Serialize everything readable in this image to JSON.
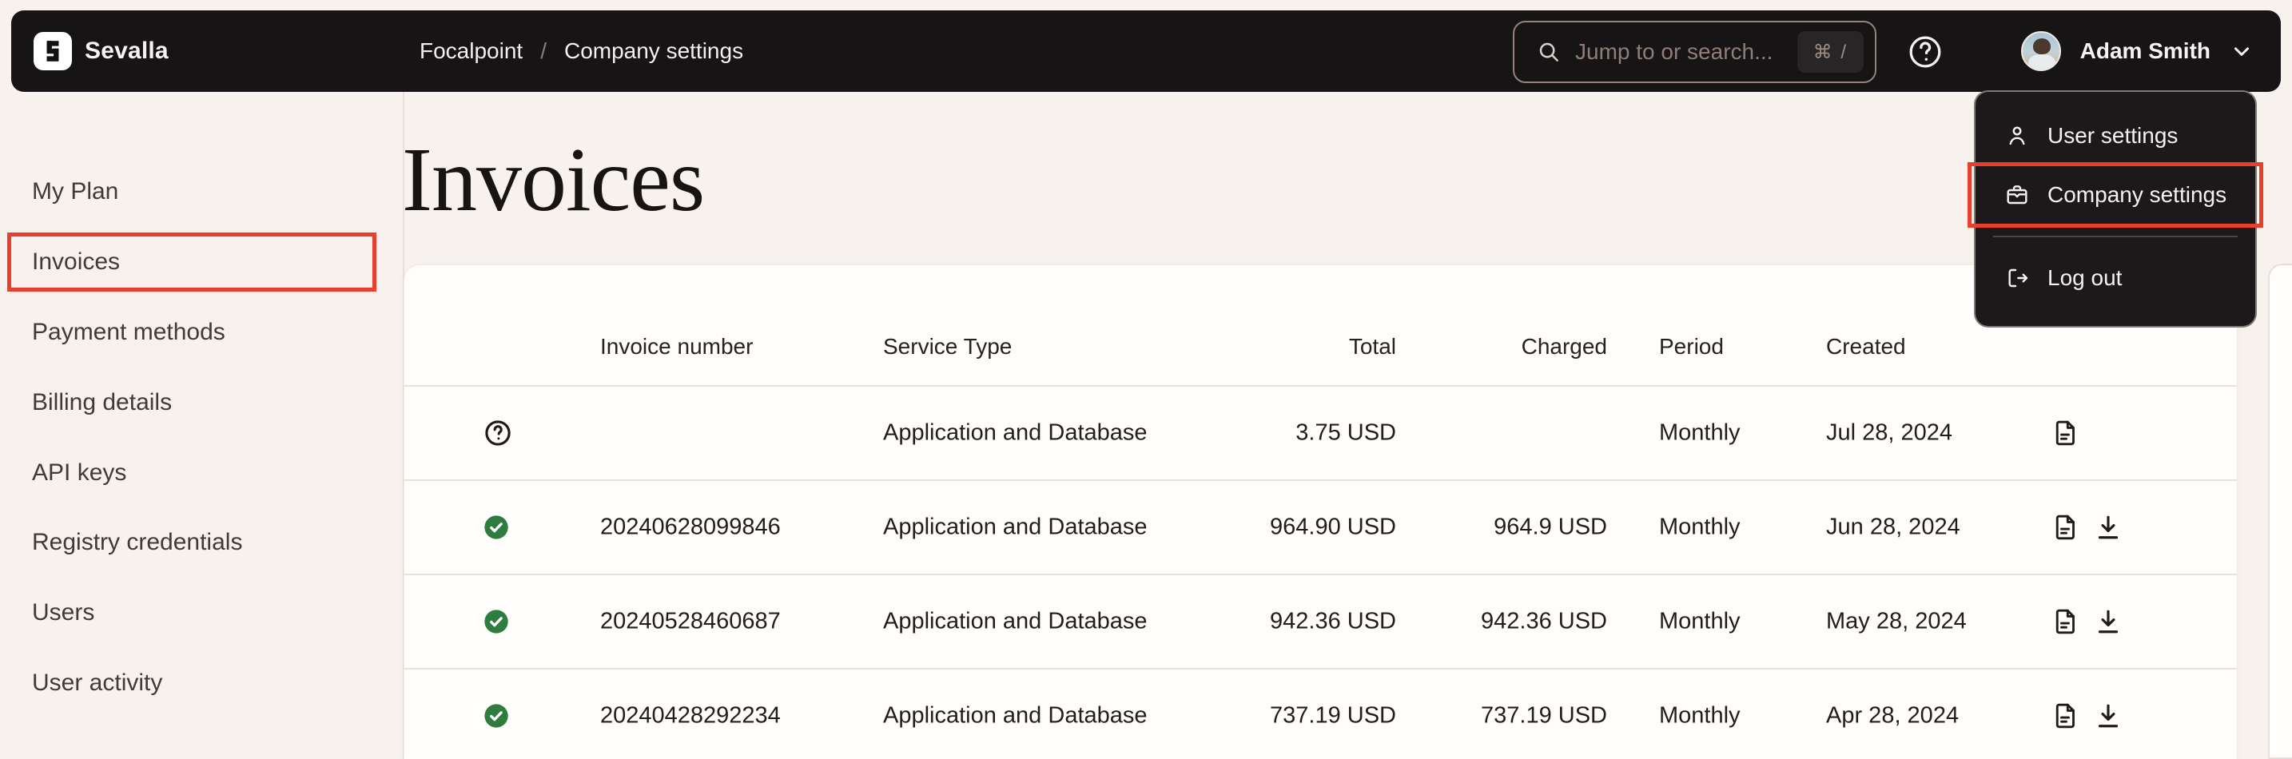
{
  "brand": {
    "name": "Sevalla"
  },
  "navbar": {
    "breadcrumb": {
      "items": [
        "Focalpoint",
        "Company settings"
      ],
      "separator": "/"
    },
    "search": {
      "placeholder": "Jump to or search...",
      "shortcut": "⌘ /"
    },
    "user": {
      "name": "Adam Smith"
    }
  },
  "user_menu": {
    "items": [
      {
        "label": "User settings",
        "icon": "user-icon",
        "highlighted": false
      },
      {
        "label": "Company settings",
        "icon": "briefcase-icon",
        "highlighted": true
      },
      {
        "label": "Log out",
        "icon": "logout-icon",
        "highlighted": false
      }
    ]
  },
  "sidebar": {
    "items": [
      {
        "label": "My Plan",
        "selected": false
      },
      {
        "label": "Invoices",
        "selected": true,
        "annotated": true
      },
      {
        "label": "Payment methods",
        "selected": false
      },
      {
        "label": "Billing details",
        "selected": false
      },
      {
        "label": "API keys",
        "selected": false
      },
      {
        "label": "Registry credentials",
        "selected": false
      },
      {
        "label": "Users",
        "selected": false
      },
      {
        "label": "User activity",
        "selected": false
      }
    ]
  },
  "main": {
    "title": "Invoices",
    "table": {
      "columns": [
        "Invoice number",
        "Service Type",
        "Total",
        "Charged",
        "Period",
        "Created"
      ],
      "rows": [
        {
          "status": "pending",
          "invoice_number": "",
          "service_type": "Application and Database",
          "total": "3.75 USD",
          "charged": "",
          "period": "Monthly",
          "created": "Jul 28, 2024",
          "actions": [
            "view"
          ]
        },
        {
          "status": "paid",
          "invoice_number": "20240628099846",
          "service_type": "Application and Database",
          "total": "964.90 USD",
          "charged": "964.9 USD",
          "period": "Monthly",
          "created": "Jun 28, 2024",
          "actions": [
            "view",
            "download"
          ]
        },
        {
          "status": "paid",
          "invoice_number": "20240528460687",
          "service_type": "Application and Database",
          "total": "942.36 USD",
          "charged": "942.36 USD",
          "period": "Monthly",
          "created": "May 28, 2024",
          "actions": [
            "view",
            "download"
          ]
        },
        {
          "status": "paid",
          "invoice_number": "20240428292234",
          "service_type": "Application and Database",
          "total": "737.19 USD",
          "charged": "737.19 USD",
          "period": "Monthly",
          "created": "Apr 28, 2024",
          "actions": [
            "view",
            "download"
          ]
        }
      ]
    }
  },
  "colors": {
    "annotation_red": "#e8402b",
    "paid_green": "#2e7d3e",
    "navbar_bg": "#171415",
    "page_bg": "#f7f2ed",
    "selected_item_bg": "#e4dbd4"
  }
}
